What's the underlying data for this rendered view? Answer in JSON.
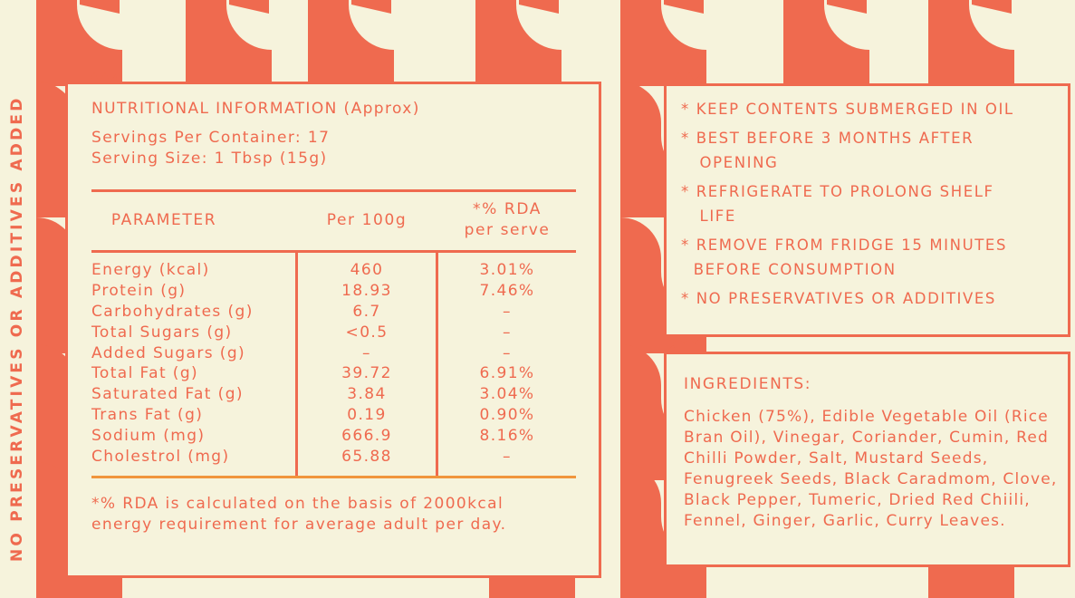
{
  "side_text": "NO PRESERVATIVES OR ADDITIVES ADDED",
  "background": {
    "color": "#f6f3dc",
    "accent": "#ef6a4f",
    "pattern_icon": "rooster-icon"
  },
  "nutrition": {
    "title": "NUTRITIONAL INFORMATION (Approx)",
    "servings_per_container": "Servings Per Container: 17",
    "serving_size": "Serving Size: 1 Tbsp (15g)",
    "headers": {
      "parameter": "PARAMETER",
      "per100": "Per 100g",
      "rda_line1": "*% RDA",
      "rda_line2": "per serve"
    },
    "rows": [
      {
        "param": "Energy (kcal)",
        "per100": "460",
        "rda": "3.01%"
      },
      {
        "param": "Protein (g)",
        "per100": "18.93",
        "rda": "7.46%"
      },
      {
        "param": "Carbohydrates (g)",
        "per100": "6.7",
        "rda": "–"
      },
      {
        "param": "Total Sugars (g)",
        "per100": "<0.5",
        "rda": "–"
      },
      {
        "param": "Added Sugars (g)",
        "per100": "–",
        "rda": "–"
      },
      {
        "param": "Total Fat (g)",
        "per100": "39.72",
        "rda": "6.91%"
      },
      {
        "param": "Saturated Fat (g)",
        "per100": "3.84",
        "rda": "3.04%"
      },
      {
        "param": "Trans Fat (g)",
        "per100": "0.19",
        "rda": "0.90%"
      },
      {
        "param": "Sodium (mg)",
        "per100": "666.9",
        "rda": "8.16%"
      },
      {
        "param": "Cholestrol (mg)",
        "per100": "65.88",
        "rda": "–"
      }
    ],
    "footnote": "*% RDA is calculated on the basis of 2000kcal energy requirement for average adult per day."
  },
  "instructions": [
    "* KEEP CONTENTS SUBMERGED IN OIL",
    "* BEST BEFORE 3 MONTHS AFTER\n   OPENING",
    "* REFRIGERATE TO PROLONG SHELF\n   LIFE",
    "* REMOVE FROM FRIDGE 15 MINUTES\n  BEFORE CONSUMPTION",
    "* NO PRESERVATIVES OR ADDITIVES"
  ],
  "ingredients": {
    "title": "INGREDIENTS:",
    "text": "Chicken (75%), Edible Vegetable Oil (Rice Bran Oil), Vinegar, Coriander, Cumin, Red Chilli Powder, Salt, Mustard Seeds, Fenugreek Seeds, Black Caradmom, Clove, Black Pepper, Tumeric, Dried Red Chiili, Fennel, Ginger, Garlic, Curry Leaves."
  }
}
